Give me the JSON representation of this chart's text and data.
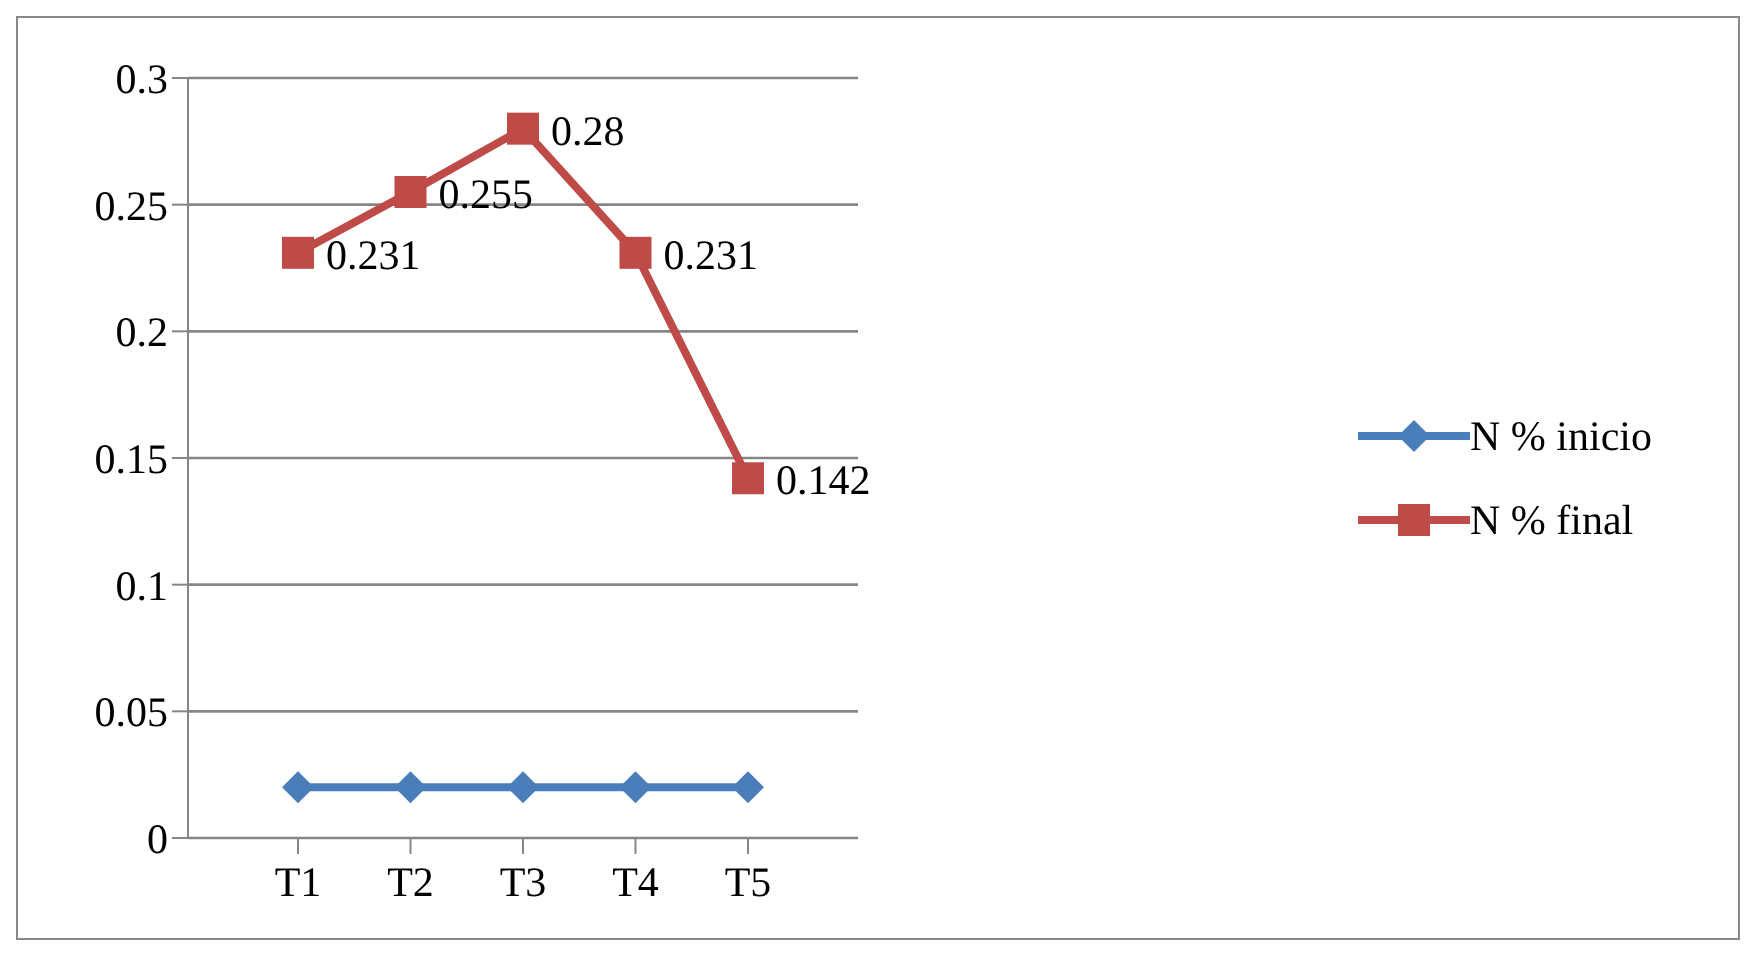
{
  "chart_data": {
    "type": "line",
    "categories": [
      "T1",
      "T2",
      "T3",
      "T4",
      "T5"
    ],
    "series": [
      {
        "name": "N % inicio",
        "color": "#4a7ebb",
        "values": [
          0.02,
          0.02,
          0.02,
          0.02,
          0.02
        ],
        "marker": "diamond"
      },
      {
        "name": "N % final",
        "color": "#be4b48",
        "values": [
          0.231,
          0.255,
          0.28,
          0.231,
          0.142
        ],
        "marker": "square",
        "value_labels": [
          "0.231",
          "0.255",
          "0.28",
          "0.231",
          "0.142"
        ]
      }
    ],
    "ylim": [
      0,
      0.3
    ],
    "yticks": [
      0,
      0.05,
      0.1,
      0.15,
      0.2,
      0.25,
      0.3
    ],
    "grid": "y",
    "legend": "right",
    "line_style": "solid"
  }
}
